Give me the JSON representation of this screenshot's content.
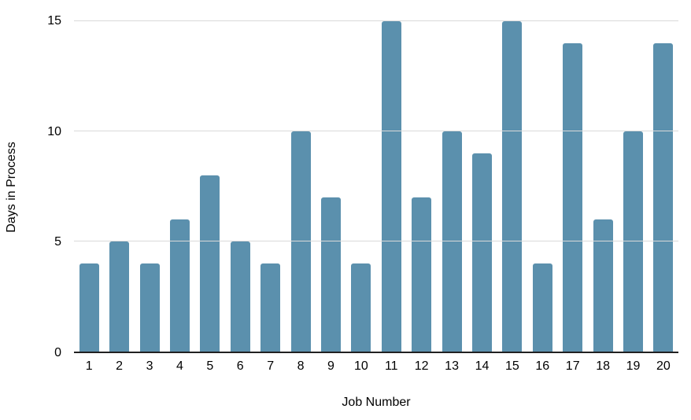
{
  "chart_data": {
    "type": "bar",
    "title": "",
    "xlabel": "Job Number",
    "ylabel": "Days in Process",
    "categories": [
      "1",
      "2",
      "3",
      "4",
      "5",
      "6",
      "7",
      "8",
      "9",
      "10",
      "11",
      "12",
      "13",
      "14",
      "15",
      "16",
      "17",
      "18",
      "19",
      "20"
    ],
    "values": [
      4,
      5,
      4,
      6,
      8,
      5,
      4,
      10,
      7,
      4,
      15,
      7,
      10,
      9,
      15,
      4,
      14,
      6,
      10,
      14
    ],
    "ylim": [
      0,
      15
    ],
    "yticks": [
      0,
      5,
      10,
      15
    ],
    "grid": true,
    "legend_position": "none",
    "colors": {
      "bar": "#5b90ad",
      "gridline": "#d9d9d9",
      "axis_line": "#212121",
      "text": "#000000",
      "background": "#ffffff"
    }
  }
}
